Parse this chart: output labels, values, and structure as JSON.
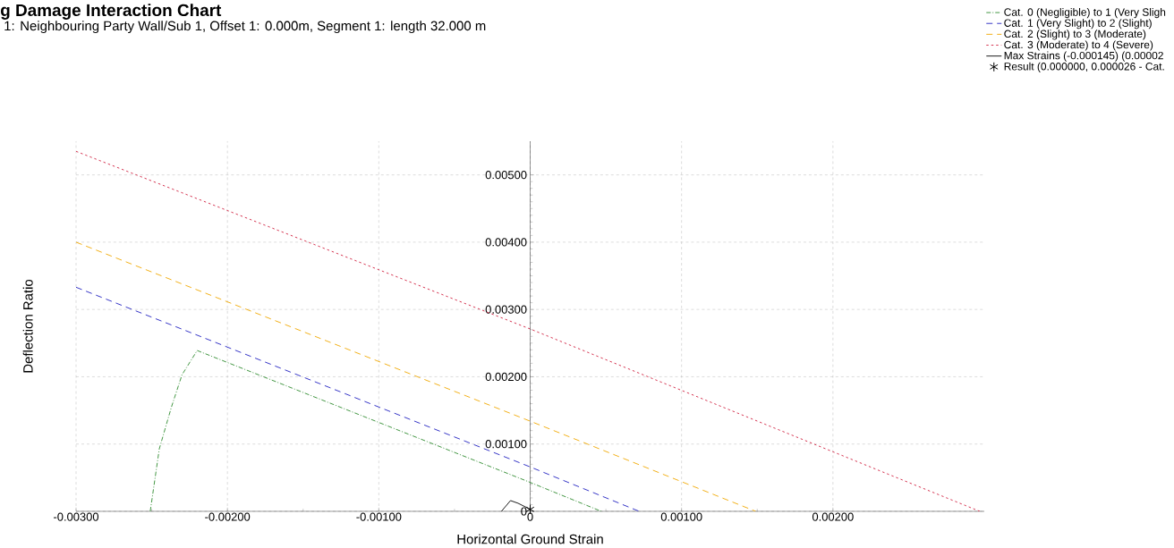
{
  "chart_data": {
    "type": "line",
    "title": "g Damage Interaction Chart",
    "subtitle": "1: Neighbouring Party Wall/Sub 1, Offset 1: 0.000m, Segment 1: length 32.000 m",
    "xlabel": "Horizontal Ground Strain",
    "ylabel": "Deflection Ratio",
    "xlim": [
      -0.003,
      0.003
    ],
    "ylim": [
      0,
      0.0055
    ],
    "xticks": [
      {
        "value": -0.003,
        "label": "-0.00300"
      },
      {
        "value": -0.002,
        "label": "-0.00200"
      },
      {
        "value": -0.001,
        "label": "-0.00100"
      },
      0,
      {
        "value": 0.001,
        "label": "0.00100"
      },
      {
        "value": 0.002,
        "label": "0.00200"
      }
    ],
    "yticks": [
      0,
      {
        "value": 0.001,
        "label": "0.00100"
      },
      {
        "value": 0.002,
        "label": "0.00200"
      },
      {
        "value": 0.003,
        "label": "0.00300"
      },
      {
        "value": 0.004,
        "label": "0.00400"
      },
      {
        "value": 0.005,
        "label": "0.00500"
      }
    ],
    "grid": true,
    "legend": "top right",
    "series": [
      {
        "name": "Cat. 0 (Negligible) to 1 (Very Sligh",
        "color": "#2e8b2e",
        "line_style": "dashdot",
        "x": [
          -0.00251,
          -0.00245,
          -0.00237,
          -0.0023,
          -0.0022,
          0,
          0.00047
        ],
        "values": [
          0,
          0.00093,
          0.00155,
          0.00203,
          0.00239,
          0.00043,
          0
        ]
      },
      {
        "name": "Cat. 1 (Very Slight) to 2 (Slight)",
        "color": "#2020c0",
        "line_style": "dashed",
        "x": [
          -0.003,
          0,
          0.00072
        ],
        "values": [
          0.00333,
          0.00066,
          0
        ]
      },
      {
        "name": "Cat. 2 (Slight) to 3 (Moderate)",
        "color": "#f0a800",
        "line_style": "dashed",
        "x": [
          -0.003,
          0,
          0.00149
        ],
        "values": [
          0.004,
          0.00134,
          0
        ]
      },
      {
        "name": "Cat. 3 (Moderate) to 4 (Severe)",
        "color": "#d02040",
        "line_style": "dotted",
        "x": [
          -0.003,
          0,
          0.00297
        ],
        "values": [
          0.00535,
          0.00271,
          0
        ]
      },
      {
        "name": "Max Strains (-0.000145) (0.00002",
        "color": "#000000",
        "line_style": "solid",
        "x": [
          -0.00019,
          -0.00013,
          -8e-05,
          0
        ],
        "values": [
          0,
          0.00016,
          0.00012,
          3e-05
        ]
      },
      {
        "name": "Result (0.000000, 0.000026 - Cat.",
        "color": "#000000",
        "type": "scatter",
        "marker": "cross",
        "x": [
          0
        ],
        "values": [
          3e-05
        ]
      }
    ]
  }
}
